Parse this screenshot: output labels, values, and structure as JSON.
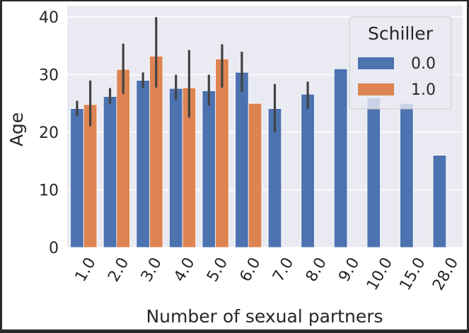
{
  "chart_data": {
    "type": "bar",
    "title": "",
    "xlabel": "Number of sexual partners",
    "ylabel": "Age",
    "categories": [
      "1.0",
      "2.0",
      "3.0",
      "4.0",
      "5.0",
      "6.0",
      "7.0",
      "8.0",
      "9.0",
      "10.0",
      "15.0",
      "28.0"
    ],
    "ylim": [
      0,
      42
    ],
    "yticks": [
      0,
      10,
      20,
      30,
      40
    ],
    "grid": true,
    "legend": {
      "title": "Schiller",
      "placement": "top-right"
    },
    "series": [
      {
        "name": "0.0",
        "color": "#4c72b0",
        "values": [
          24.1,
          26.2,
          29.0,
          27.6,
          27.2,
          30.4,
          24.1,
          26.6,
          31.0,
          26.0,
          25.0,
          16.0
        ],
        "ci": [
          [
            23.0,
            25.3
          ],
          [
            25.0,
            27.5
          ],
          [
            27.8,
            30.2
          ],
          [
            25.8,
            29.8
          ],
          [
            24.8,
            29.8
          ],
          [
            27.2,
            33.8
          ],
          [
            20.2,
            28.2
          ],
          [
            24.2,
            28.6
          ],
          null,
          null,
          null,
          null
        ]
      },
      {
        "name": "1.0",
        "color": "#dd8452",
        "values": [
          24.8,
          30.9,
          33.2,
          27.7,
          32.7,
          25.0,
          null,
          null,
          null,
          null,
          null,
          null
        ],
        "ci": [
          [
            21.2,
            28.8
          ],
          [
            26.8,
            35.2
          ],
          [
            27.9,
            39.8
          ],
          [
            22.7,
            34.1
          ],
          [
            27.9,
            35.1
          ],
          null,
          null,
          null,
          null,
          null,
          null,
          null
        ]
      }
    ]
  }
}
